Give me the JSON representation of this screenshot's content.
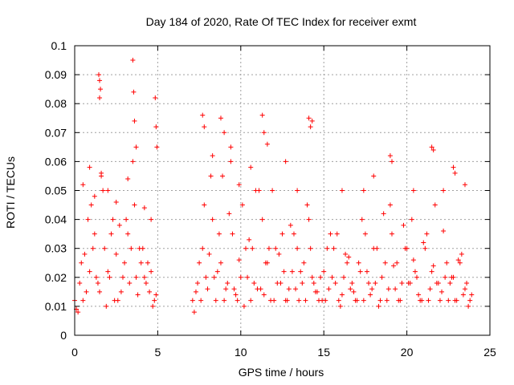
{
  "chart_data": {
    "type": "scatter",
    "title": "Day 184 of 2020, Rate Of TEC Index for receiver exmt",
    "xlabel": "GPS time / hours",
    "ylabel": "ROTI / TECUs",
    "xlim": [
      0,
      25
    ],
    "ylim": [
      0,
      0.1
    ],
    "x_ticks": [
      "0",
      "5",
      "10",
      "15",
      "20",
      "25"
    ],
    "y_ticks": [
      "0",
      "0.01",
      "0.02",
      "0.03",
      "0.04",
      "0.05",
      "0.06",
      "0.07",
      "0.08",
      "0.09",
      "0.1"
    ],
    "grid": true,
    "marker": "plus",
    "color": "#ff0000",
    "series": [
      {
        "x": [
          0.0,
          0.3,
          0.6,
          0.9,
          1.2,
          1.5,
          1.8,
          2.1,
          2.4,
          2.7,
          3.0,
          3.3,
          3.6,
          3.9,
          4.2,
          4.5,
          4.8,
          0.1,
          0.4,
          0.7,
          1.0,
          1.3,
          1.6,
          1.9,
          2.2,
          2.5,
          2.8,
          3.1,
          3.4,
          3.7,
          4.0,
          4.3,
          4.6,
          4.9,
          0.2,
          0.5,
          0.8,
          1.1,
          1.4,
          1.7,
          2.0,
          2.3,
          2.6,
          2.9,
          3.2,
          3.5,
          3.8,
          4.1,
          4.4,
          4.7,
          1.45,
          1.5,
          1.55,
          1.5,
          3.5,
          3.55,
          3.6,
          4.85,
          4.9,
          4.95,
          0.5,
          0.9,
          1.2,
          1.6,
          2.0,
          2.5,
          3.2,
          3.7,
          4.2,
          4.6,
          7.1,
          7.4,
          7.7,
          8.0,
          8.3,
          8.6,
          8.9,
          9.2,
          9.5,
          9.8,
          10.1,
          10.4,
          10.7,
          11.0,
          11.3,
          11.6,
          11.9,
          12.2,
          12.5,
          12.8,
          13.1,
          13.4,
          13.7,
          14.0,
          14.3,
          14.6,
          14.9,
          15.2,
          15.5,
          15.8,
          16.1,
          16.4,
          16.7,
          17.0,
          17.3,
          17.6,
          17.9,
          18.2,
          18.5,
          18.8,
          19.1,
          19.4,
          19.7,
          20.0,
          20.3,
          20.6,
          20.9,
          21.2,
          21.5,
          21.8,
          22.1,
          22.4,
          22.7,
          23.0,
          23.3,
          23.6,
          23.9,
          7.2,
          7.5,
          7.8,
          8.1,
          8.4,
          8.7,
          9.0,
          9.3,
          9.6,
          9.9,
          10.2,
          10.5,
          10.8,
          11.1,
          11.4,
          11.7,
          12.0,
          12.3,
          12.6,
          12.9,
          13.2,
          13.5,
          13.8,
          14.1,
          14.4,
          14.7,
          15.0,
          15.3,
          15.6,
          15.9,
          16.2,
          16.5,
          16.8,
          17.1,
          17.4,
          17.7,
          18.0,
          18.3,
          18.6,
          18.9,
          19.2,
          19.5,
          19.8,
          20.1,
          20.4,
          20.7,
          21.0,
          21.3,
          21.6,
          21.9,
          22.2,
          22.5,
          22.8,
          23.1,
          23.4,
          23.7,
          7.3,
          7.6,
          7.9,
          8.2,
          8.5,
          8.8,
          9.1,
          9.4,
          9.7,
          10.0,
          10.3,
          10.6,
          10.9,
          11.2,
          11.5,
          11.8,
          12.1,
          12.4,
          12.7,
          13.0,
          13.3,
          13.6,
          13.9,
          14.2,
          14.5,
          14.8,
          15.1,
          15.4,
          15.7,
          16.0,
          16.3,
          16.6,
          16.9,
          17.2,
          17.5,
          17.8,
          18.1,
          18.4,
          18.7,
          19.0,
          19.3,
          19.6,
          19.9,
          20.2,
          20.5,
          20.8,
          21.1,
          21.4,
          21.7,
          22.0,
          22.3,
          22.6,
          22.9,
          23.2,
          23.5,
          23.8,
          7.7,
          7.8,
          8.8,
          9.0,
          9.4,
          11.3,
          11.4,
          11.6,
          14.1,
          14.2,
          14.3,
          19.0,
          19.1,
          21.5,
          21.6,
          22.8,
          22.9,
          8.3,
          9.9,
          10.6,
          12.7,
          13.4,
          16.1,
          17.4,
          18.0,
          20.4,
          22.2,
          23.5
        ],
        "y": [
          0.012,
          0.018,
          0.028,
          0.022,
          0.035,
          0.015,
          0.03,
          0.02,
          0.012,
          0.038,
          0.025,
          0.018,
          0.045,
          0.03,
          0.02,
          0.015,
          0.012,
          0.009,
          0.025,
          0.015,
          0.045,
          0.02,
          0.055,
          0.01,
          0.035,
          0.028,
          0.015,
          0.04,
          0.03,
          0.02,
          0.025,
          0.018,
          0.022,
          0.014,
          0.008,
          0.012,
          0.04,
          0.03,
          0.018,
          0.05,
          0.022,
          0.04,
          0.012,
          0.02,
          0.035,
          0.06,
          0.014,
          0.03,
          0.025,
          0.01,
          0.09,
          0.088,
          0.085,
          0.082,
          0.095,
          0.084,
          0.074,
          0.082,
          0.072,
          0.065,
          0.052,
          0.058,
          0.048,
          0.056,
          0.05,
          0.046,
          0.054,
          0.065,
          0.044,
          0.04,
          0.012,
          0.018,
          0.03,
          0.016,
          0.04,
          0.022,
          0.055,
          0.018,
          0.035,
          0.012,
          0.045,
          0.02,
          0.03,
          0.016,
          0.04,
          0.025,
          0.05,
          0.018,
          0.035,
          0.012,
          0.022,
          0.03,
          0.018,
          0.045,
          0.02,
          0.015,
          0.012,
          0.03,
          0.02,
          0.035,
          0.014,
          0.025,
          0.018,
          0.012,
          0.04,
          0.022,
          0.016,
          0.03,
          0.02,
          0.012,
          0.035,
          0.025,
          0.018,
          0.03,
          0.04,
          0.02,
          0.012,
          0.035,
          0.022,
          0.018,
          0.015,
          0.025,
          0.02,
          0.012,
          0.028,
          0.018,
          0.014,
          0.008,
          0.025,
          0.045,
          0.028,
          0.02,
          0.035,
          0.012,
          0.042,
          0.016,
          0.026,
          0.01,
          0.033,
          0.018,
          0.05,
          0.014,
          0.03,
          0.012,
          0.028,
          0.022,
          0.016,
          0.035,
          0.012,
          0.025,
          0.04,
          0.018,
          0.012,
          0.022,
          0.016,
          0.03,
          0.012,
          0.02,
          0.027,
          0.015,
          0.025,
          0.012,
          0.018,
          0.03,
          0.01,
          0.042,
          0.016,
          0.024,
          0.012,
          0.038,
          0.018,
          0.026,
          0.014,
          0.032,
          0.012,
          0.024,
          0.018,
          0.036,
          0.012,
          0.02,
          0.026,
          0.014,
          0.01,
          0.015,
          0.012,
          0.02,
          0.055,
          0.012,
          0.025,
          0.016,
          0.06,
          0.014,
          0.02,
          0.03,
          0.012,
          0.05,
          0.016,
          0.025,
          0.012,
          0.03,
          0.018,
          0.012,
          0.038,
          0.016,
          0.022,
          0.012,
          0.03,
          0.015,
          0.02,
          0.012,
          0.035,
          0.018,
          0.01,
          0.028,
          0.016,
          0.012,
          0.022,
          0.035,
          0.014,
          0.018,
          0.012,
          0.025,
          0.045,
          0.016,
          0.012,
          0.03,
          0.018,
          0.022,
          0.012,
          0.03,
          0.016,
          0.045,
          0.012,
          0.02,
          0.018,
          0.012,
          0.025,
          0.016,
          0.012,
          0.076,
          0.072,
          0.075,
          0.07,
          0.065,
          0.076,
          0.07,
          0.066,
          0.075,
          0.072,
          0.074,
          0.062,
          0.06,
          0.065,
          0.064,
          0.058,
          0.056,
          0.062,
          0.052,
          0.058,
          0.06,
          0.05,
          0.05,
          0.05,
          0.055,
          0.05,
          0.05,
          0.052
        ]
      }
    ]
  }
}
